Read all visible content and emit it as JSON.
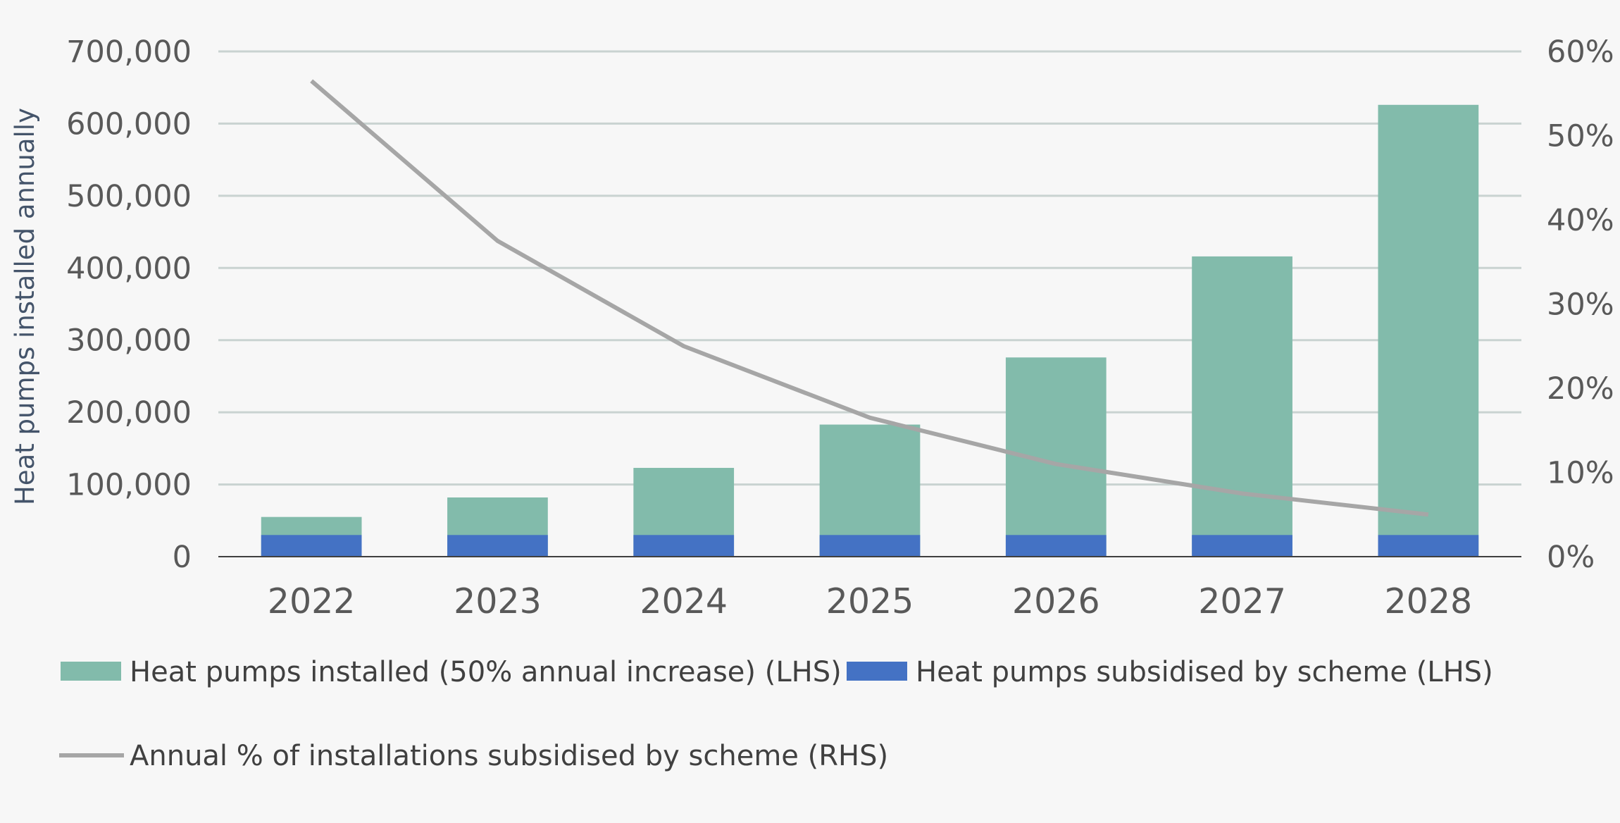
{
  "chart_data": {
    "type": "bar",
    "stacked": true,
    "categories": [
      "2022",
      "2023",
      "2024",
      "2025",
      "2026",
      "2027",
      "2028"
    ],
    "series": [
      {
        "name": "Heat pumps installed (50% annual increase) (LHS)",
        "type": "bar",
        "axis": "left",
        "color": "#82bbab",
        "values": [
          55000,
          82000,
          123000,
          183000,
          276000,
          416000,
          626000
        ]
      },
      {
        "name": "Heat pumps subsidised by scheme (LHS)",
        "type": "bar",
        "axis": "left",
        "color": "#4472c4",
        "values": [
          30000,
          30000,
          30000,
          30000,
          30000,
          30000,
          30000
        ]
      },
      {
        "name": "Annual % of installations subsidised by scheme (RHS)",
        "type": "line",
        "axis": "right",
        "color": "#a6a6a6",
        "values": [
          56.5,
          37.5,
          25,
          16.5,
          11,
          7.5,
          5
        ]
      }
    ],
    "ylabel": "Heat pumps installed annually",
    "ylim": [
      0,
      700000
    ],
    "y_ticks": [
      "0",
      "100,000",
      "200,000",
      "300,000",
      "400,000",
      "500,000",
      "600,000",
      "700,000"
    ],
    "y2lim": [
      0,
      60
    ],
    "y2_ticks": [
      "0%",
      "10%",
      "20%",
      "30%",
      "40%",
      "50%",
      "60%"
    ],
    "grid": true,
    "legend_position": "bottom"
  }
}
